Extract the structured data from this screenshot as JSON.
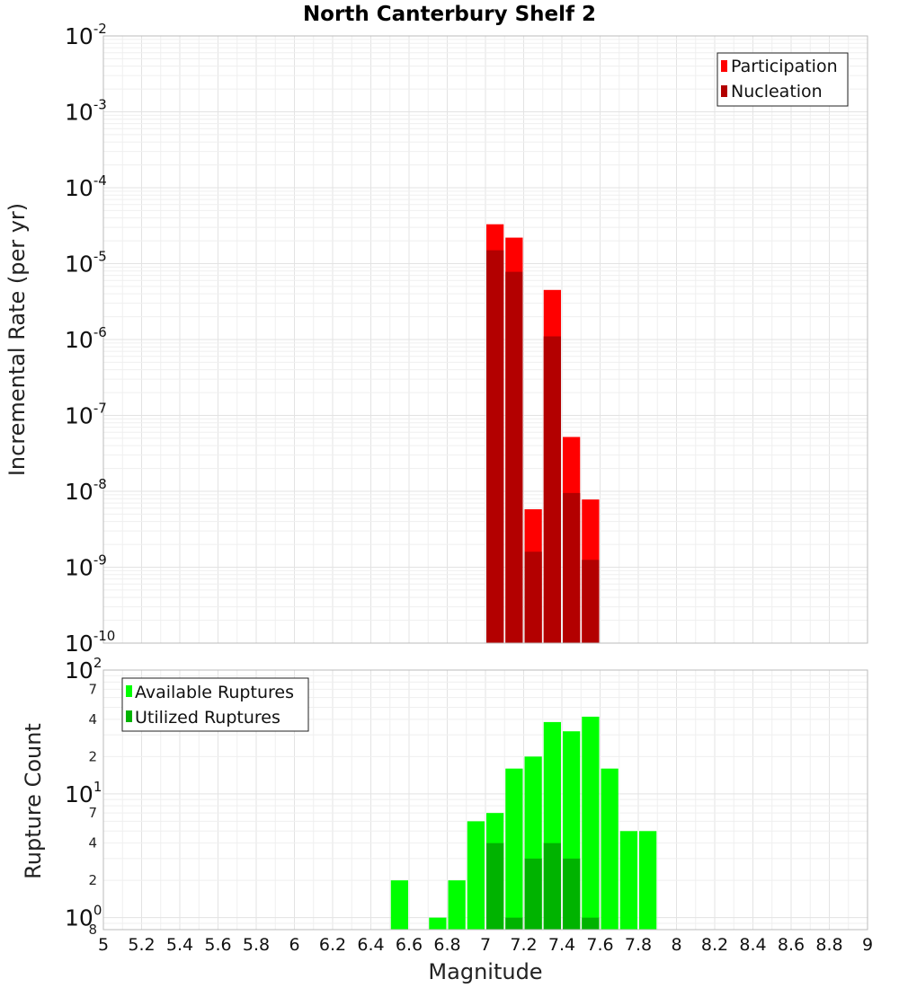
{
  "colors": {
    "participation": "#ff0000",
    "nucleation": "#b30000",
    "available": "#00ff00",
    "utilized": "#00b300",
    "grid": "#e3e3e3",
    "frame": "#bbbbbb"
  },
  "chart_data": [
    {
      "type": "bar",
      "title": "North Canterbury Shelf 2",
      "ylabel": "Incremental Rate (per yr)",
      "xlabel": "",
      "yscale": "log",
      "xlim": [
        5,
        9
      ],
      "ylim": [
        1e-10,
        0.01
      ],
      "y_tick_labels": [
        {
          "base": "10",
          "exp": "-10",
          "value": 1e-10
        },
        {
          "base": "10",
          "exp": "-9",
          "value": 1e-09
        },
        {
          "base": "10",
          "exp": "-8",
          "value": 1e-08
        },
        {
          "base": "10",
          "exp": "-7",
          "value": 1e-07
        },
        {
          "base": "10",
          "exp": "-6",
          "value": 1e-06
        },
        {
          "base": "10",
          "exp": "-5",
          "value": 1e-05
        },
        {
          "base": "10",
          "exp": "-4",
          "value": 0.0001
        },
        {
          "base": "10",
          "exp": "-3",
          "value": 0.001
        },
        {
          "base": "10",
          "exp": "-2",
          "value": 0.01
        }
      ],
      "legend": {
        "placement": "top-right",
        "entries": [
          "Participation",
          "Nucleation"
        ]
      },
      "bin_width": 0.1,
      "series": [
        {
          "name": "Participation",
          "x": [
            7.05,
            7.15,
            7.25,
            7.35,
            7.45,
            7.55
          ],
          "values": [
            3.3e-05,
            2.2e-05,
            5.8e-09,
            4.5e-06,
            5.2e-08,
            7.8e-09
          ]
        },
        {
          "name": "Nucleation",
          "x": [
            7.05,
            7.15,
            7.25,
            7.35,
            7.45,
            7.55
          ],
          "values": [
            1.5e-05,
            7.8e-06,
            1.6e-09,
            1.1e-06,
            9.5e-09,
            1.25e-09
          ]
        }
      ]
    },
    {
      "type": "bar",
      "title": "",
      "ylabel": "Rupture Count",
      "xlabel": "Magnitude",
      "yscale": "log",
      "xlim": [
        5,
        9
      ],
      "ylim": [
        0.8,
        100
      ],
      "x_tick_labels": [
        "5",
        "5.2",
        "5.4",
        "5.6",
        "5.8",
        "6",
        "6.2",
        "6.4",
        "6.6",
        "6.8",
        "7",
        "7.2",
        "7.4",
        "7.6",
        "7.8",
        "8",
        "8.2",
        "8.4",
        "8.6",
        "8.8",
        "9"
      ],
      "x_tick_values": [
        5,
        5.2,
        5.4,
        5.6,
        5.8,
        6,
        6.2,
        6.4,
        6.6,
        6.8,
        7,
        7.2,
        7.4,
        7.6,
        7.8,
        8,
        8.2,
        8.4,
        8.6,
        8.8,
        9
      ],
      "y_tick_labels": [
        {
          "base": "10",
          "exp": "0",
          "value": 1
        },
        {
          "base": "10",
          "exp": "1",
          "value": 10
        },
        {
          "base": "10",
          "exp": "2",
          "value": 100
        }
      ],
      "y_minor_labels": [
        {
          "label": "8",
          "value": 0.8
        },
        {
          "label": "2",
          "value": 2
        },
        {
          "label": "4",
          "value": 4
        },
        {
          "label": "7",
          "value": 7
        },
        {
          "label": "2",
          "value": 20
        },
        {
          "label": "4",
          "value": 40
        },
        {
          "label": "7",
          "value": 70
        }
      ],
      "legend": {
        "placement": "top-left",
        "entries": [
          "Available Ruptures",
          "Utilized Ruptures"
        ]
      },
      "bin_width": 0.1,
      "series": [
        {
          "name": "Available Ruptures",
          "x": [
            6.55,
            6.75,
            6.85,
            6.95,
            7.05,
            7.15,
            7.25,
            7.35,
            7.45,
            7.55,
            7.65,
            7.75,
            7.85
          ],
          "values": [
            2,
            1,
            2,
            6,
            7,
            16,
            20,
            38,
            32,
            42,
            16,
            5,
            5
          ]
        },
        {
          "name": "Utilized Ruptures",
          "x": [
            7.05,
            7.15,
            7.25,
            7.35,
            7.45,
            7.55
          ],
          "values": [
            4,
            1,
            3,
            4,
            3,
            1
          ]
        }
      ]
    }
  ]
}
